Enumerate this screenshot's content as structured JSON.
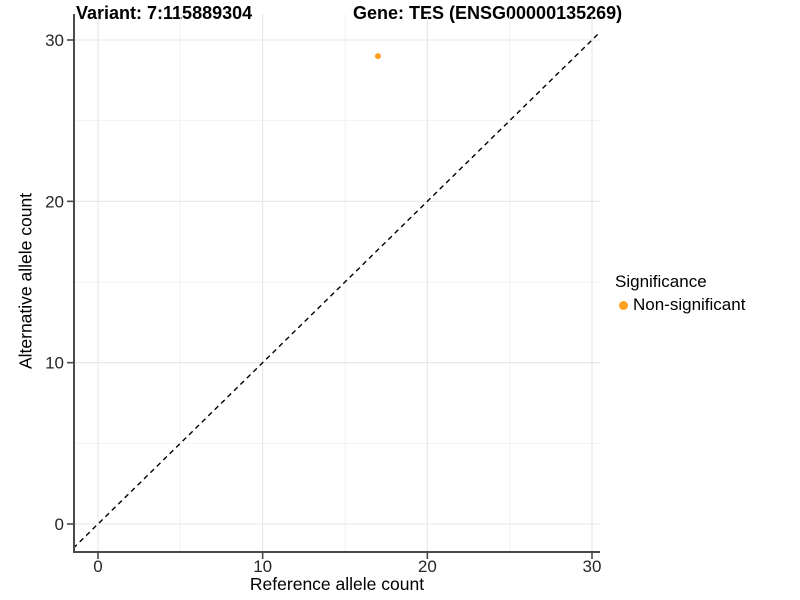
{
  "colors": {
    "point": "#FFA01E",
    "axis": "#4a4a4a",
    "grid_major": "#e7e7e7",
    "grid_minor": "#f3f3f3",
    "tick_label": "#262626",
    "reference_line": "#000000"
  },
  "chart_data": {
    "type": "scatter",
    "title_parts": [
      "Variant: 7:115889304",
      "Gene: TES (ENSG00000135269)"
    ],
    "xlabel": "Reference allele count",
    "ylabel": "Alternative allele count",
    "xlim": [
      -1.5,
      31.5
    ],
    "ylim": [
      -1.5,
      31.5
    ],
    "xticks": [
      0,
      10,
      20,
      30
    ],
    "yticks": [
      0,
      10,
      20,
      30
    ],
    "xminor": [
      5,
      15,
      25
    ],
    "yminor": [
      5,
      15,
      25
    ],
    "grid": "major-and-minor",
    "legend_title": "Significance",
    "legend_position": "right",
    "series": [
      {
        "name": "Non-significant",
        "color": "#FFA01E",
        "points": [
          {
            "x": 17,
            "y": 29
          }
        ]
      }
    ],
    "reference_line": {
      "kind": "identity y=x",
      "style": "dashed",
      "color": "#000000",
      "from": [
        -1.5,
        -1.5
      ],
      "to": [
        31.5,
        31.5
      ]
    }
  }
}
